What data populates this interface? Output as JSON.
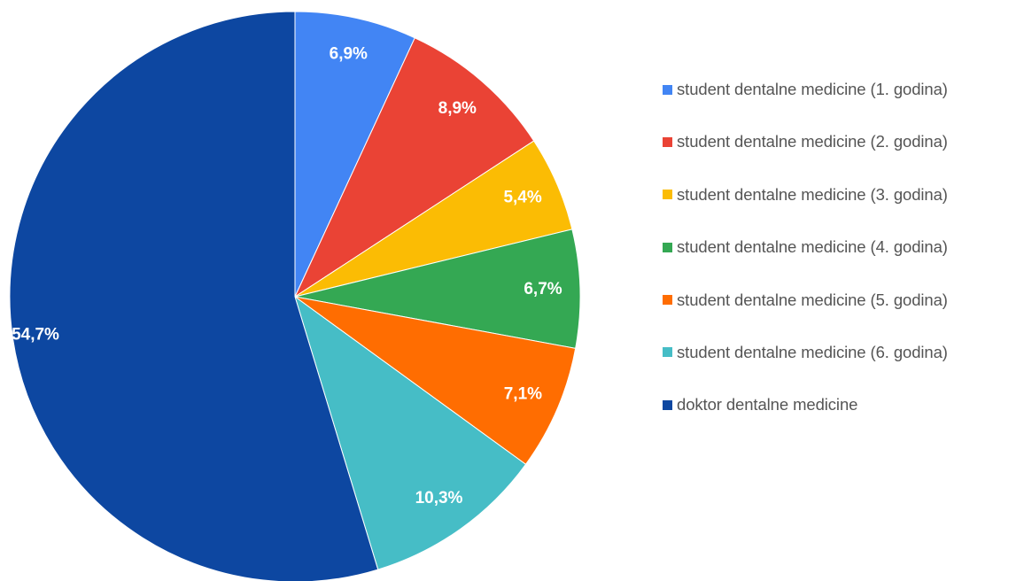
{
  "chart_data": {
    "type": "pie",
    "title": "",
    "slices": [
      {
        "name": "student dentalne medicine (1. godina)",
        "value": 6.9,
        "label": "6,9%",
        "color": "#4285f4"
      },
      {
        "name": "student dentalne medicine (2. godina)",
        "value": 8.9,
        "label": "8,9%",
        "color": "#ea4335"
      },
      {
        "name": "student dentalne medicine (3. godina)",
        "value": 5.4,
        "label": "5,4%",
        "color": "#fbbc04"
      },
      {
        "name": "student dentalne medicine (4. godina)",
        "value": 6.7,
        "label": "6,7%",
        "color": "#34a853"
      },
      {
        "name": "student dentalne medicine (5. godina)",
        "value": 7.1,
        "label": "7,1%",
        "color": "#ff6d01"
      },
      {
        "name": "student dentalne medicine (6. godina)",
        "value": 10.3,
        "label": "10,3%",
        "color": "#46bdc6"
      },
      {
        "name": "doktor dentalne medicine",
        "value": 54.7,
        "label": "54,7%",
        "color": "#0d47a1"
      }
    ],
    "legend_position": "right"
  }
}
